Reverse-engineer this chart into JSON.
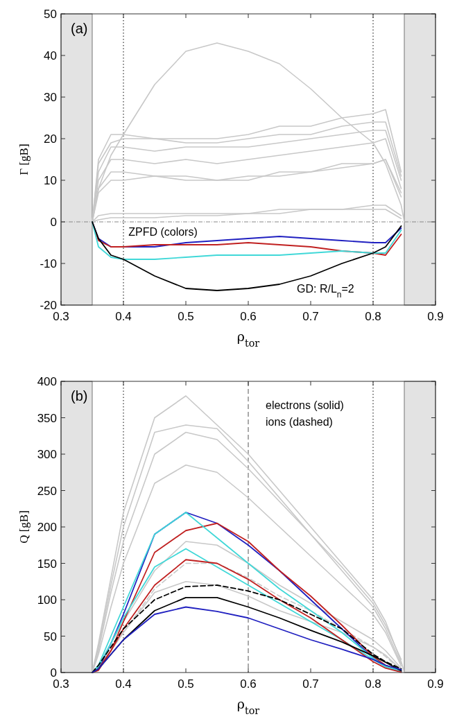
{
  "chart_data": [
    {
      "type": "line",
      "xlabel": "ρ$_{tor}$",
      "ylabel": "Γ [gB]",
      "xlim": [
        0.3,
        0.9
      ],
      "xticks": [
        0.3,
        0.4,
        0.5,
        0.6,
        0.7,
        0.8,
        0.9
      ],
      "ylim": [
        -20,
        50
      ],
      "yticks": [
        -20,
        -10,
        0,
        10,
        20,
        30,
        40,
        50
      ],
      "grid": false,
      "x": [
        0.35,
        0.36,
        0.38,
        0.4,
        0.45,
        0.5,
        0.55,
        0.6,
        0.65,
        0.7,
        0.75,
        0.8,
        0.82,
        0.845,
        0.85
      ],
      "bands": [
        {
          "axis": "x",
          "from": 0.3,
          "to": 0.35,
          "color": "#e3e3e3"
        },
        {
          "axis": "x",
          "from": 0.85,
          "to": 0.9,
          "color": "#e3e3e3"
        }
      ],
      "ref_lines": [
        {
          "axis": "x",
          "value": 0.4,
          "line_style": "dotted",
          "color": "#000000"
        },
        {
          "axis": "x",
          "value": 0.8,
          "line_style": "dotted",
          "color": "#000000"
        },
        {
          "axis": "y",
          "value": 0,
          "line_style": "dashed",
          "color": "#888888"
        }
      ],
      "annotations": [
        "(a)",
        "ZPFD (colors)",
        "GD: R/L$_{n}$=2"
      ],
      "series": [
        {
          "color": "#c8c8c8",
          "values": [
            0,
            8,
            16,
            21,
            33,
            41,
            43,
            41,
            38,
            32,
            25,
            19,
            14,
            4,
            0
          ]
        },
        {
          "color": "#c8c8c8",
          "values": [
            0,
            15,
            21,
            21,
            20,
            20,
            20,
            21,
            23,
            23,
            25,
            26,
            27,
            12,
            null
          ]
        },
        {
          "color": "#c8c8c8",
          "values": [
            0,
            14,
            19,
            20,
            20,
            19,
            19,
            20,
            21,
            21,
            23,
            24,
            24,
            11,
            null
          ]
        },
        {
          "color": "#c8c8c8",
          "values": [
            0,
            12,
            18,
            18,
            17,
            18,
            18,
            18,
            19,
            20,
            21,
            22,
            22,
            10,
            null
          ]
        },
        {
          "color": "#c8c8c8",
          "values": [
            0,
            10,
            15,
            15,
            14,
            15,
            14,
            15,
            16,
            17,
            18,
            19,
            20,
            8,
            null
          ]
        },
        {
          "color": "#c8c8c8",
          "values": [
            0,
            8,
            12,
            12,
            11,
            11,
            10,
            11,
            11,
            12,
            14,
            14,
            15,
            6,
            null
          ]
        },
        {
          "color": "#c8c8c8",
          "values": [
            0,
            7,
            10,
            10,
            11,
            10,
            10,
            10,
            12,
            12,
            13,
            14,
            15,
            7,
            null
          ]
        },
        {
          "color": "#c8c8c8",
          "values": [
            0,
            1.5,
            2,
            2,
            2,
            2,
            2,
            2,
            3,
            3,
            3,
            4,
            4,
            1.5,
            null
          ]
        },
        {
          "color": "#c8c8c8",
          "values": [
            0,
            0.5,
            1,
            1,
            1,
            1.5,
            1.5,
            2,
            2,
            3,
            3,
            3,
            3,
            0.8,
            null
          ]
        },
        {
          "color": "#2020c0",
          "values": [
            0,
            -4,
            -6,
            -6,
            -6,
            -5,
            -4.5,
            -4,
            -3.5,
            -4,
            -4.5,
            -5,
            -5,
            -1.5,
            null
          ]
        },
        {
          "color": "#c02020",
          "values": [
            0,
            -4.5,
            -6,
            -6,
            -5.5,
            -5.5,
            -5.5,
            -5,
            -5.5,
            -6,
            -7,
            -7.5,
            -8,
            -3,
            null
          ]
        },
        {
          "color": "#40d8d8",
          "values": [
            0,
            -6,
            -8.5,
            -9,
            -9,
            -8.5,
            -8,
            -8,
            -8,
            -7.5,
            -7,
            -7.5,
            -7.5,
            -2,
            null
          ]
        },
        {
          "color": "#000000",
          "values": [
            0,
            -4,
            -8,
            -9,
            -13,
            -16,
            -16.5,
            -16,
            -15,
            -13,
            -10,
            -7.5,
            -6,
            -1,
            null
          ]
        }
      ]
    },
    {
      "type": "line",
      "xlabel": "ρ$_{tor}$",
      "ylabel": "Q [gB]",
      "xlim": [
        0.3,
        0.9
      ],
      "xticks": [
        0.3,
        0.4,
        0.5,
        0.6,
        0.7,
        0.8,
        0.9
      ],
      "ylim": [
        0,
        400
      ],
      "yticks": [
        0,
        50,
        100,
        150,
        200,
        250,
        300,
        350,
        400
      ],
      "grid": false,
      "x": [
        0.35,
        0.36,
        0.38,
        0.4,
        0.45,
        0.5,
        0.55,
        0.6,
        0.65,
        0.7,
        0.75,
        0.8,
        0.82,
        0.845,
        0.85
      ],
      "bands": [
        {
          "axis": "x",
          "from": 0.3,
          "to": 0.35,
          "color": "#e3e3e3"
        },
        {
          "axis": "x",
          "from": 0.85,
          "to": 0.9,
          "color": "#e3e3e3"
        }
      ],
      "ref_lines": [
        {
          "axis": "x",
          "value": 0.4,
          "line_style": "dotted",
          "color": "#000000"
        },
        {
          "axis": "x",
          "value": 0.8,
          "line_style": "dotted",
          "color": "#000000"
        },
        {
          "axis": "x",
          "value": 0.6,
          "line_style": "dashed",
          "color": "#555555"
        }
      ],
      "annotations": [
        "(b)",
        "electrons (solid)",
        "ions (dashed)"
      ],
      "series": [
        {
          "color": "#c8c8c8",
          "values": [
            0,
            40,
            130,
            220,
            350,
            380,
            340,
            300,
            250,
            200,
            150,
            100,
            70,
            15,
            0
          ]
        },
        {
          "color": "#c8c8c8",
          "values": [
            0,
            35,
            120,
            200,
            330,
            340,
            335,
            290,
            240,
            190,
            140,
            90,
            60,
            12,
            null
          ]
        },
        {
          "color": "#c8c8c8",
          "values": [
            0,
            30,
            110,
            180,
            300,
            330,
            320,
            280,
            235,
            190,
            145,
            95,
            65,
            18,
            null
          ]
        },
        {
          "color": "#c8c8c8",
          "values": [
            0,
            25,
            90,
            150,
            260,
            285,
            275,
            240,
            200,
            160,
            120,
            80,
            55,
            9,
            null
          ]
        },
        {
          "color": "#c8c8c8",
          "values": [
            0,
            10,
            40,
            70,
            140,
            180,
            175,
            150,
            120,
            95,
            70,
            45,
            30,
            6,
            null
          ]
        },
        {
          "color": "#c8c8c8",
          "values": [
            0,
            8,
            30,
            55,
            110,
            125,
            120,
            105,
            85,
            70,
            55,
            35,
            24,
            4,
            null
          ]
        },
        {
          "color": "#c8c8c8",
          "line_style": "dashed",
          "values": [
            0,
            8,
            30,
            55,
            115,
            150,
            150,
            130,
            105,
            85,
            60,
            35,
            22,
            3,
            null
          ]
        },
        {
          "color": "#2020c0",
          "values": [
            0,
            5,
            40,
            80,
            190,
            220,
            205,
            175,
            140,
            100,
            60,
            20,
            10,
            1.5,
            null
          ]
        },
        {
          "color": "#c02020",
          "values": [
            0,
            3,
            30,
            70,
            165,
            195,
            205,
            180,
            140,
            105,
            65,
            22,
            10,
            2,
            null
          ]
        },
        {
          "color": "#40d8d8",
          "values": [
            0,
            10,
            50,
            90,
            190,
            220,
            185,
            150,
            115,
            85,
            55,
            20,
            8,
            1,
            null
          ]
        },
        {
          "color": "#40d8d8",
          "values": [
            0,
            8,
            40,
            75,
            145,
            170,
            145,
            120,
            95,
            70,
            45,
            18,
            8,
            3,
            null
          ]
        },
        {
          "color": "#c02020",
          "values": [
            0,
            5,
            30,
            60,
            120,
            155,
            150,
            128,
            100,
            75,
            45,
            15,
            6,
            0.5,
            null
          ]
        },
        {
          "color": "#000000",
          "line_style": "dashed",
          "values": [
            0,
            10,
            35,
            60,
            100,
            118,
            120,
            112,
            100,
            80,
            60,
            25,
            15,
            5,
            null
          ]
        },
        {
          "color": "#000000",
          "values": [
            0,
            5,
            25,
            45,
            85,
            103,
            103,
            90,
            75,
            58,
            42,
            23,
            14,
            2.5,
            null
          ]
        },
        {
          "color": "#2020c0",
          "values": [
            0,
            5,
            25,
            45,
            80,
            90,
            84,
            75,
            60,
            45,
            32,
            18,
            10,
            4,
            null
          ]
        }
      ]
    }
  ]
}
